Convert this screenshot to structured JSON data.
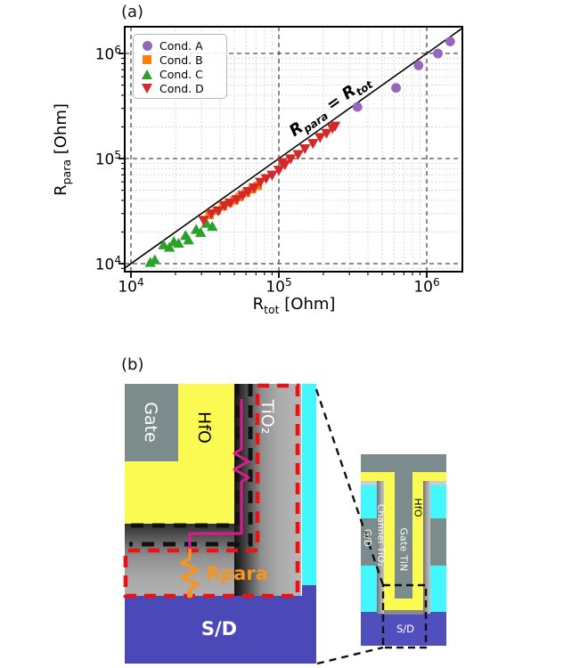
{
  "figure": {
    "panel_a_label": "(a)",
    "panel_b_label": "(b)"
  },
  "chart_data": {
    "type": "scatter",
    "title": "",
    "xscale": "log",
    "yscale": "log",
    "xlim": [
      9100,
      1750000
    ],
    "ylim": [
      8400,
      1850000
    ],
    "grid": {
      "major": "dashed",
      "minor": "dotted"
    },
    "legend_position": "upper left",
    "xlabel": {
      "base": "R",
      "sub": "tot",
      "rest": " [Ohm]"
    },
    "ylabel": {
      "base": "R",
      "sub": "para",
      "rest": " [Ohm]"
    },
    "x_tick_values": [
      10000,
      100000,
      1000000
    ],
    "y_tick_values": [
      10000,
      100000,
      1000000
    ],
    "x_ticks": [
      {
        "base": "10",
        "exp": "4"
      },
      {
        "base": "10",
        "exp": "5"
      },
      {
        "base": "10",
        "exp": "6"
      }
    ],
    "y_ticks": [
      {
        "base": "10",
        "exp": "4"
      },
      {
        "base": "10",
        "exp": "5"
      },
      {
        "base": "10",
        "exp": "6"
      }
    ],
    "identity_line": {
      "label_parts": {
        "p1": "R",
        "s1": "para",
        "p2": " = R",
        "s2": "tot"
      }
    },
    "series": [
      {
        "name": "Cond. A",
        "marker": "circle",
        "color": "#9467bd",
        "points": [
          [
            340000,
            310000
          ],
          [
            620000,
            470000
          ],
          [
            880000,
            770000
          ],
          [
            1190000,
            1000000
          ],
          [
            1440000,
            1300000
          ]
        ]
      },
      {
        "name": "Cond. B",
        "marker": "square",
        "color": "#ff7f0e",
        "points": [
          [
            34000,
            29000
          ],
          [
            38000,
            32000
          ],
          [
            42000,
            35000
          ],
          [
            46000,
            38000
          ],
          [
            50000,
            40000
          ],
          [
            54000,
            43000
          ],
          [
            60000,
            47000
          ],
          [
            66000,
            51000
          ],
          [
            72000,
            55000
          ]
        ]
      },
      {
        "name": "Cond. C",
        "marker": "triangle-up",
        "color": "#2ca02c",
        "points": [
          [
            13500,
            10200
          ],
          [
            14500,
            10800
          ],
          [
            16600,
            15000
          ],
          [
            18200,
            14200
          ],
          [
            19500,
            16100
          ],
          [
            21000,
            15500
          ],
          [
            23400,
            18400
          ],
          [
            24500,
            16700
          ],
          [
            27600,
            21000
          ],
          [
            29600,
            19600
          ],
          [
            32400,
            24000
          ],
          [
            35500,
            22400
          ]
        ]
      },
      {
        "name": "Cond. D",
        "marker": "triangle-down",
        "color": "#d62728",
        "points": [
          [
            31000,
            26000
          ],
          [
            35000,
            30000
          ],
          [
            39000,
            32000
          ],
          [
            43000,
            36000
          ],
          [
            47000,
            38000
          ],
          [
            52000,
            41000
          ],
          [
            57000,
            45000
          ],
          [
            62000,
            49000
          ],
          [
            68000,
            53000
          ],
          [
            75000,
            60000
          ],
          [
            82000,
            65000
          ],
          [
            90000,
            70000
          ],
          [
            100000,
            78000
          ],
          [
            105000,
            92000
          ],
          [
            110000,
            88000
          ],
          [
            120000,
            100000
          ],
          [
            135000,
            110000
          ],
          [
            150000,
            125000
          ],
          [
            170000,
            140000
          ],
          [
            190000,
            160000
          ],
          [
            210000,
            175000
          ],
          [
            230000,
            195000
          ],
          [
            240000,
            205000
          ]
        ]
      }
    ]
  },
  "diagram": {
    "labels": {
      "gate": "Gate",
      "hfo": "HfO",
      "tio2": "TiO₂",
      "rpara": "Rpara",
      "sd": "S/D",
      "inset_hfo": "HfO",
      "inset_gate_tin": "Gate TiN",
      "inset_channel": "Channel TiO₂",
      "inset_gd": "G/D",
      "inset_sd": "S/D"
    },
    "colors": {
      "gate_gray": "#7c8b8b",
      "hfo_yellow": "#fbfa53",
      "spacer_cyan": "#42f8fe",
      "sd_blue": "#4b49b7",
      "tio2_outline_red": "#ee1111",
      "interface_dash_black": "#111111",
      "resistor_magenta": "#e01a8e",
      "rpara_orange": "#f79420"
    }
  }
}
